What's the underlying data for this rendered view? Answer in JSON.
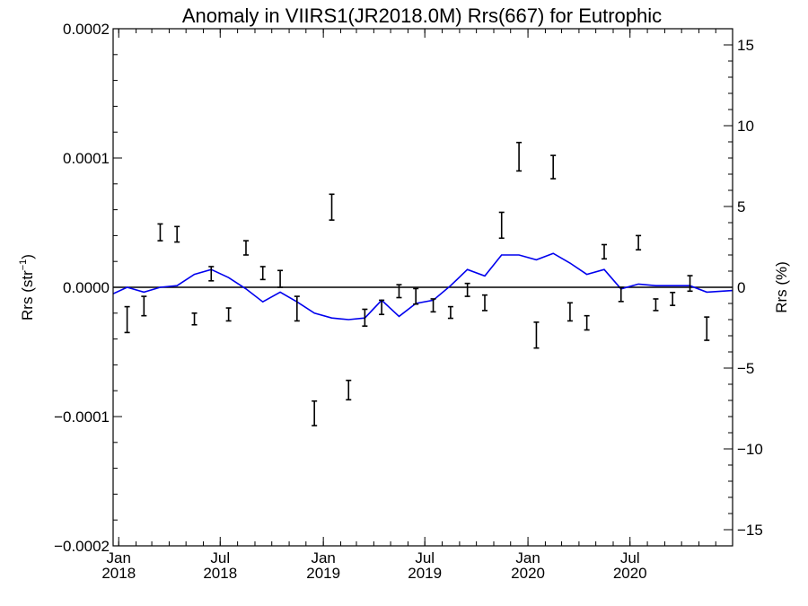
{
  "chart_data": {
    "type": "line",
    "title": "Anomaly in VIIRS1(JR2018.0M) Rrs(667) for Eutrophic",
    "ylabel_left": "Rrs (str⁻¹)",
    "ylabel_right": "Rrs (%)",
    "xlim": [
      "2017-12-22",
      "2020-12-31"
    ],
    "ylim_left": [
      -0.0002,
      0.0002
    ],
    "ylim_right": [
      -16,
      16
    ],
    "yticks_left": [
      {
        "value": 0.0002,
        "label": "0.0002"
      },
      {
        "value": 0.0001,
        "label": "0.0001"
      },
      {
        "value": 0.0,
        "label": "0.0000"
      },
      {
        "value": -0.0001,
        "label": "−0.0001"
      },
      {
        "value": -0.0002,
        "label": "−0.0002"
      }
    ],
    "yticks_right": [
      {
        "value": 15,
        "label": "15"
      },
      {
        "value": 10,
        "label": "10"
      },
      {
        "value": 5,
        "label": "5"
      },
      {
        "value": 0,
        "label": "0"
      },
      {
        "value": -5,
        "label": "−5"
      },
      {
        "value": -10,
        "label": "−10"
      },
      {
        "value": -15,
        "label": "−15"
      }
    ],
    "xticks": [
      {
        "date": "2018-01-01",
        "month": "Jan",
        "year": "2018"
      },
      {
        "date": "2018-07-01",
        "month": "Jul",
        "year": "2018"
      },
      {
        "date": "2019-01-01",
        "month": "Jan",
        "year": "2019"
      },
      {
        "date": "2019-07-01",
        "month": "Jul",
        "year": "2019"
      },
      {
        "date": "2020-01-01",
        "month": "Jan",
        "year": "2020"
      },
      {
        "date": "2020-07-01",
        "month": "Jul",
        "year": "2020"
      }
    ],
    "zero_line": 0,
    "colors": {
      "error_bars": "#000000",
      "line": "#0000ee",
      "zero_line": "#000000"
    },
    "error_bar_series": {
      "axis": "left",
      "points": [
        {
          "x": "2018-01-16",
          "low": -3.5e-05,
          "high": -1.5e-05
        },
        {
          "x": "2018-02-15",
          "low": -2.2e-05,
          "high": -7e-06
        },
        {
          "x": "2018-03-16",
          "low": 3.6e-05,
          "high": 4.9e-05
        },
        {
          "x": "2018-04-15",
          "low": 3.5e-05,
          "high": 4.7e-05
        },
        {
          "x": "2018-05-16",
          "low": -2.9e-05,
          "high": -2e-05
        },
        {
          "x": "2018-06-15",
          "low": 5e-06,
          "high": 1.6e-05
        },
        {
          "x": "2018-07-16",
          "low": -2.6e-05,
          "high": -1.6e-05
        },
        {
          "x": "2018-08-16",
          "low": 2.5e-05,
          "high": 3.6e-05
        },
        {
          "x": "2018-09-15",
          "low": 6e-06,
          "high": 1.6e-05
        },
        {
          "x": "2018-10-16",
          "low": 0.0,
          "high": 1.3e-05
        },
        {
          "x": "2018-11-15",
          "low": -2.6e-05,
          "high": -7e-06
        },
        {
          "x": "2018-12-16",
          "low": -0.000107,
          "high": -8.8e-05
        },
        {
          "x": "2019-01-16",
          "low": 5.2e-05,
          "high": 7.2e-05
        },
        {
          "x": "2019-02-15",
          "low": -8.7e-05,
          "high": -7.2e-05
        },
        {
          "x": "2019-03-16",
          "low": -3e-05,
          "high": -1.7e-05
        },
        {
          "x": "2019-04-15",
          "low": -2.1e-05,
          "high": -1e-05
        },
        {
          "x": "2019-05-16",
          "low": -8e-06,
          "high": 2e-06
        },
        {
          "x": "2019-06-15",
          "low": -1.3e-05,
          "high": -1e-06
        },
        {
          "x": "2019-07-16",
          "low": -1.9e-05,
          "high": -9e-06
        },
        {
          "x": "2019-08-16",
          "low": -2.4e-05,
          "high": -1.5e-05
        },
        {
          "x": "2019-09-15",
          "low": -7e-06,
          "high": 3e-06
        },
        {
          "x": "2019-10-16",
          "low": -1.8e-05,
          "high": -6e-06
        },
        {
          "x": "2019-11-15",
          "low": 3.8e-05,
          "high": 5.8e-05
        },
        {
          "x": "2019-12-16",
          "low": 9e-05,
          "high": 0.000112
        },
        {
          "x": "2020-01-16",
          "low": -4.7e-05,
          "high": -2.7e-05
        },
        {
          "x": "2020-02-15",
          "low": 8.4e-05,
          "high": 0.000102
        },
        {
          "x": "2020-03-16",
          "low": -2.6e-05,
          "high": -1.2e-05
        },
        {
          "x": "2020-04-15",
          "low": -3.3e-05,
          "high": -2.2e-05
        },
        {
          "x": "2020-05-16",
          "low": 2.2e-05,
          "high": 3.3e-05
        },
        {
          "x": "2020-06-15",
          "low": -1.1e-05,
          "high": 0.0
        },
        {
          "x": "2020-07-16",
          "low": 2.9e-05,
          "high": 4e-05
        },
        {
          "x": "2020-08-16",
          "low": -1.8e-05,
          "high": -9e-06
        },
        {
          "x": "2020-09-15",
          "low": -1.4e-05,
          "high": -4e-06
        },
        {
          "x": "2020-10-16",
          "low": -3e-06,
          "high": 9e-06
        },
        {
          "x": "2020-11-15",
          "low": -4.1e-05,
          "high": -2.3e-05
        }
      ]
    },
    "line_series": {
      "axis": "right",
      "points": [
        {
          "x": "2017-12-22",
          "y": -0.4
        },
        {
          "x": "2018-01-16",
          "y": 0.0
        },
        {
          "x": "2018-02-15",
          "y": -0.3
        },
        {
          "x": "2018-03-16",
          "y": 0.0
        },
        {
          "x": "2018-04-15",
          "y": 0.1
        },
        {
          "x": "2018-05-16",
          "y": 0.8
        },
        {
          "x": "2018-06-15",
          "y": 1.1
        },
        {
          "x": "2018-07-16",
          "y": 0.6
        },
        {
          "x": "2018-08-16",
          "y": -0.1
        },
        {
          "x": "2018-09-15",
          "y": -0.9
        },
        {
          "x": "2018-10-16",
          "y": -0.3
        },
        {
          "x": "2018-11-15",
          "y": -0.9
        },
        {
          "x": "2018-12-16",
          "y": -1.6
        },
        {
          "x": "2019-01-16",
          "y": -1.9
        },
        {
          "x": "2019-02-15",
          "y": -2.0
        },
        {
          "x": "2019-03-16",
          "y": -1.9
        },
        {
          "x": "2019-04-15",
          "y": -0.8
        },
        {
          "x": "2019-05-16",
          "y": -1.8
        },
        {
          "x": "2019-06-15",
          "y": -1.0
        },
        {
          "x": "2019-07-16",
          "y": -0.8
        },
        {
          "x": "2019-08-16",
          "y": 0.1
        },
        {
          "x": "2019-09-15",
          "y": 1.1
        },
        {
          "x": "2019-10-16",
          "y": 0.7
        },
        {
          "x": "2019-11-15",
          "y": 2.0
        },
        {
          "x": "2019-12-16",
          "y": 2.0
        },
        {
          "x": "2020-01-16",
          "y": 1.7
        },
        {
          "x": "2020-02-15",
          "y": 2.1
        },
        {
          "x": "2020-03-16",
          "y": 1.5
        },
        {
          "x": "2020-04-15",
          "y": 0.8
        },
        {
          "x": "2020-05-16",
          "y": 1.1
        },
        {
          "x": "2020-06-15",
          "y": -0.1
        },
        {
          "x": "2020-07-16",
          "y": 0.2
        },
        {
          "x": "2020-08-16",
          "y": 0.1
        },
        {
          "x": "2020-09-15",
          "y": 0.1
        },
        {
          "x": "2020-10-16",
          "y": 0.1
        },
        {
          "x": "2020-11-15",
          "y": -0.3
        },
        {
          "x": "2020-12-31",
          "y": -0.2
        }
      ]
    }
  }
}
